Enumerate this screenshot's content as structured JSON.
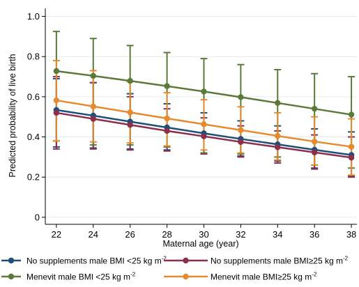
{
  "chart_data": {
    "type": "line",
    "xlabel": "Maternal age (year)",
    "ylabel": "Predicted probability of live birth",
    "x": [
      22,
      24,
      26,
      28,
      30,
      32,
      34,
      36,
      38
    ],
    "xlim": [
      21.4,
      38.3
    ],
    "ylim": [
      -0.035,
      1.04
    ],
    "xticks": [
      "22",
      "24",
      "26",
      "28",
      "30",
      "32",
      "34",
      "36",
      "38"
    ],
    "yticks": [
      "0",
      "0.2",
      "0.4",
      "0.6",
      "0.8",
      "1.0"
    ],
    "ytick_values": [
      0,
      0.2,
      0.4,
      0.6,
      0.8,
      1.0
    ],
    "grid": true,
    "legend_position": "bottom",
    "series": [
      {
        "name": "No supplements male BMI <25 kg m",
        "superscript": "-2",
        "color": "#1f4e79",
        "values": [
          0.534,
          0.506,
          0.476,
          0.447,
          0.418,
          0.39,
          0.363,
          0.336,
          0.31
        ],
        "lower": [
          0.35,
          0.345,
          0.34,
          0.335,
          0.32,
          0.305,
          0.28,
          0.245,
          0.205
        ],
        "upper": [
          0.69,
          0.67,
          0.615,
          0.565,
          0.52,
          0.48,
          0.455,
          0.44,
          0.425
        ]
      },
      {
        "name": "No supplements male BMI≥25 kg m",
        "superscript": "-2",
        "color": "#8b2f4b",
        "values": [
          0.52,
          0.49,
          0.46,
          0.43,
          0.403,
          0.375,
          0.349,
          0.323,
          0.297
        ],
        "lower": [
          0.34,
          0.34,
          0.335,
          0.33,
          0.315,
          0.3,
          0.27,
          0.24,
          0.2
        ],
        "upper": [
          0.7,
          0.67,
          0.6,
          0.54,
          0.495,
          0.455,
          0.43,
          0.41,
          0.4
        ]
      },
      {
        "name": "Menevit male BMI <25 kg m",
        "superscript": "-2",
        "color": "#5b7a3a",
        "values": [
          0.728,
          0.704,
          0.679,
          0.653,
          0.626,
          0.598,
          0.569,
          0.54,
          0.511
        ],
        "lower": [
          0.38,
          0.36,
          0.36,
          0.35,
          0.32,
          0.315,
          0.3,
          0.26,
          0.245
        ],
        "upper": [
          0.925,
          0.89,
          0.855,
          0.82,
          0.79,
          0.76,
          0.735,
          0.715,
          0.7
        ]
      },
      {
        "name": "Menevit male BMI≥25 kg m",
        "superscript": "-2",
        "color": "#e58a2e",
        "values": [
          0.582,
          0.552,
          0.522,
          0.492,
          0.463,
          0.434,
          0.405,
          0.377,
          0.351
        ],
        "lower": [
          0.38,
          0.375,
          0.37,
          0.355,
          0.335,
          0.32,
          0.285,
          0.26,
          0.21
        ],
        "upper": [
          0.78,
          0.73,
          0.675,
          0.62,
          0.585,
          0.55,
          0.52,
          0.5,
          0.49
        ]
      }
    ]
  }
}
